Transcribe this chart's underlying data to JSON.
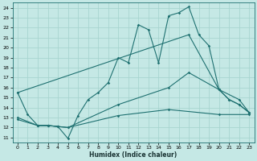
{
  "xlabel": "Humidex (Indice chaleur)",
  "xlim": [
    -0.5,
    23.5
  ],
  "ylim": [
    10.5,
    24.5
  ],
  "xticks": [
    0,
    1,
    2,
    3,
    4,
    5,
    6,
    7,
    8,
    9,
    10,
    11,
    12,
    13,
    14,
    15,
    16,
    17,
    18,
    19,
    20,
    21,
    22,
    23
  ],
  "yticks": [
    11,
    12,
    13,
    14,
    15,
    16,
    17,
    18,
    19,
    20,
    21,
    22,
    23,
    24
  ],
  "bg_color": "#c5e8e5",
  "grid_color": "#a8d5d0",
  "line_color": "#1e7070",
  "line1_x": [
    0,
    1,
    2,
    3,
    4,
    5,
    6,
    7,
    8,
    9,
    10,
    11,
    12,
    13,
    14,
    15,
    16,
    17,
    18,
    19,
    20,
    21,
    22,
    23
  ],
  "line1_y": [
    15.5,
    13.3,
    12.2,
    12.2,
    12.1,
    10.9,
    13.2,
    14.8,
    15.5,
    16.5,
    19.0,
    18.5,
    22.3,
    21.8,
    18.5,
    23.2,
    23.5,
    24.1,
    21.3,
    20.2,
    15.8,
    14.8,
    14.3,
    13.5
  ],
  "line2_x": [
    0,
    17,
    20,
    21,
    22,
    23
  ],
  "line2_y": [
    15.5,
    21.3,
    15.8,
    14.8,
    14.3,
    13.5
  ],
  "line3_x": [
    0,
    2,
    3,
    4,
    5,
    10,
    15,
    17,
    20,
    22,
    23
  ],
  "line3_y": [
    13.0,
    12.2,
    12.2,
    12.1,
    12.0,
    14.3,
    16.0,
    17.5,
    15.8,
    14.8,
    13.5
  ],
  "line4_x": [
    0,
    2,
    3,
    4,
    5,
    10,
    15,
    20,
    23
  ],
  "line4_y": [
    12.8,
    12.2,
    12.2,
    12.1,
    12.0,
    13.2,
    13.8,
    13.3,
    13.3
  ]
}
